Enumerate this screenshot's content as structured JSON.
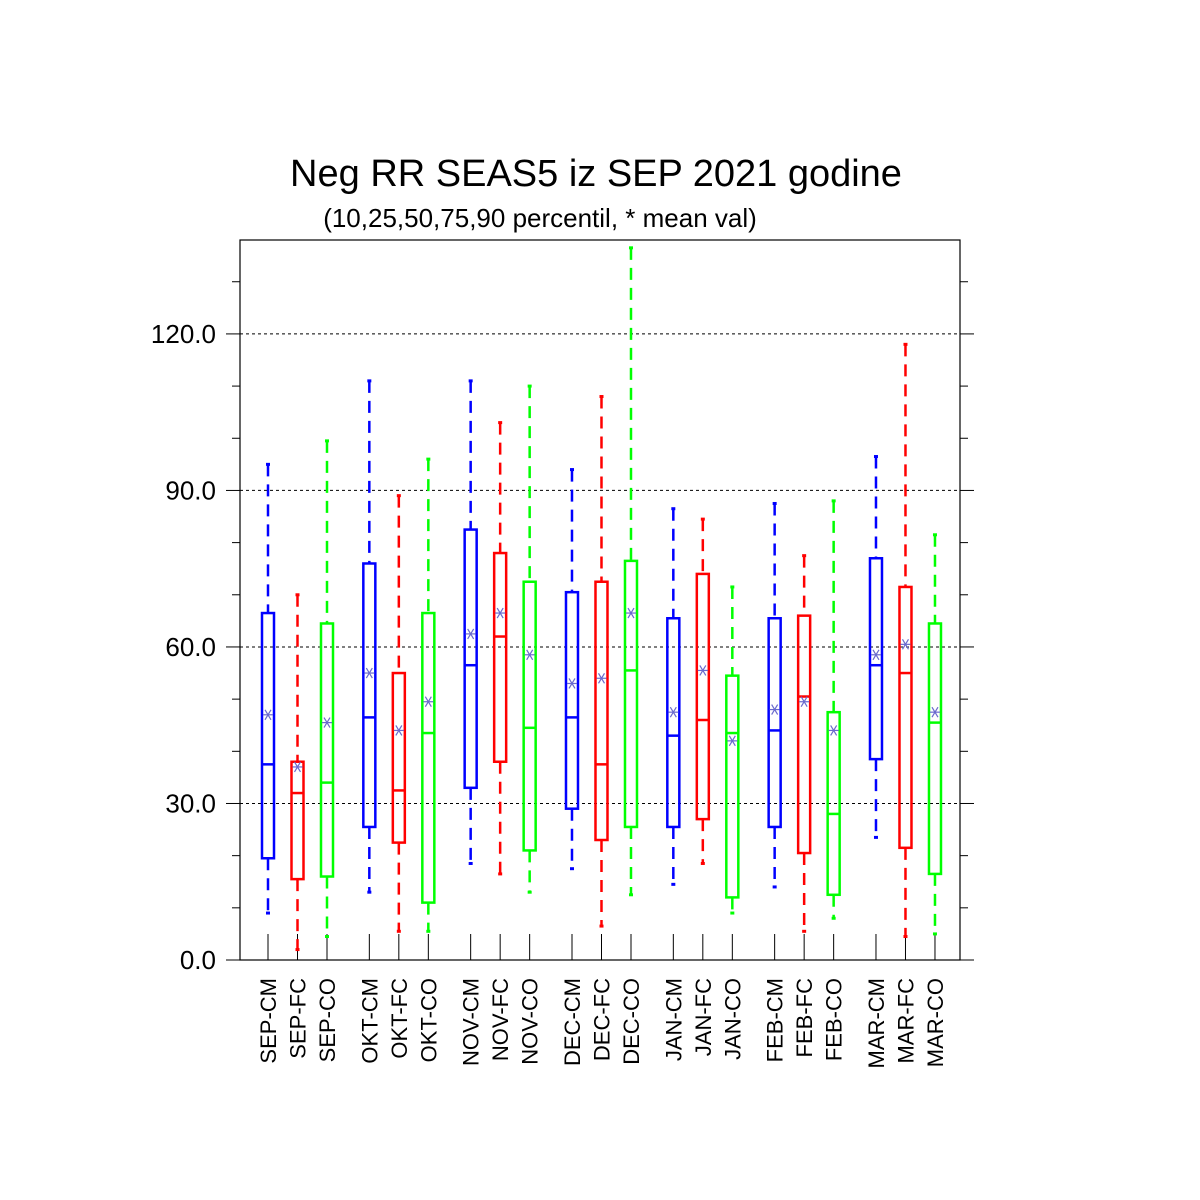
{
  "chart_data": {
    "type": "box",
    "title": "Neg RR SEAS5 iz SEP 2021 godine",
    "subtitle": "(10,25,50,75,90 percentil, * mean val)",
    "xlabel": "",
    "ylabel": "",
    "ylim": [
      0,
      138
    ],
    "yticks": [
      0,
      30,
      60,
      90,
      120
    ],
    "ytick_labels": [
      "0.0",
      "30.0",
      "60.0",
      "90.0",
      "120.0"
    ],
    "grid": "horizontal dashed at major ticks",
    "series_colors": {
      "CM": "#0000ff",
      "FC": "#ff0000",
      "CO": "#00ff00"
    },
    "mean_marker_color": "#6a6acd",
    "boxes": [
      {
        "label": "SEP-CM",
        "group": "SEP",
        "series": "CM",
        "p10": 9,
        "p25": 19.5,
        "p50": 37.5,
        "p75": 66.5,
        "p90": 95,
        "mean": 47
      },
      {
        "label": "SEP-FC",
        "group": "SEP",
        "series": "FC",
        "p10": 2,
        "p25": 15.5,
        "p50": 32,
        "p75": 38,
        "p90": 70,
        "mean": 37
      },
      {
        "label": "SEP-CO",
        "group": "SEP",
        "series": "CO",
        "p10": 4.5,
        "p25": 16,
        "p50": 34,
        "p75": 64.5,
        "p90": 99.5,
        "mean": 45.5
      },
      {
        "label": "OKT-CM",
        "group": "OKT",
        "series": "CM",
        "p10": 13,
        "p25": 25.5,
        "p50": 46.5,
        "p75": 76,
        "p90": 111,
        "mean": 55
      },
      {
        "label": "OKT-FC",
        "group": "OKT",
        "series": "FC",
        "p10": 5.5,
        "p25": 22.5,
        "p50": 32.5,
        "p75": 55,
        "p90": 89,
        "mean": 44
      },
      {
        "label": "OKT-CO",
        "group": "OKT",
        "series": "CO",
        "p10": 5.5,
        "p25": 11,
        "p50": 43.5,
        "p75": 66.5,
        "p90": 96,
        "mean": 49.5
      },
      {
        "label": "NOV-CM",
        "group": "NOV",
        "series": "CM",
        "p10": 18.5,
        "p25": 33,
        "p50": 56.5,
        "p75": 82.5,
        "p90": 111,
        "mean": 62.5
      },
      {
        "label": "NOV-FC",
        "group": "NOV",
        "series": "FC",
        "p10": 16.5,
        "p25": 38,
        "p50": 62,
        "p75": 78,
        "p90": 103,
        "mean": 66.5
      },
      {
        "label": "NOV-CO",
        "group": "NOV",
        "series": "CO",
        "p10": 13,
        "p25": 21,
        "p50": 44.5,
        "p75": 72.5,
        "p90": 110,
        "mean": 58.5
      },
      {
        "label": "DEC-CM",
        "group": "DEC",
        "series": "CM",
        "p10": 17.5,
        "p25": 29,
        "p50": 46.5,
        "p75": 70.5,
        "p90": 94,
        "mean": 53
      },
      {
        "label": "DEC-FC",
        "group": "DEC",
        "series": "FC",
        "p10": 6.5,
        "p25": 23,
        "p50": 37.5,
        "p75": 72.5,
        "p90": 108,
        "mean": 54
      },
      {
        "label": "DEC-CO",
        "group": "DEC",
        "series": "CO",
        "p10": 12.5,
        "p25": 25.5,
        "p50": 55.5,
        "p75": 76.5,
        "p90": 136.5,
        "mean": 66.5
      },
      {
        "label": "JAN-CM",
        "group": "JAN",
        "series": "CM",
        "p10": 14.5,
        "p25": 25.5,
        "p50": 43,
        "p75": 65.5,
        "p90": 86.5,
        "mean": 47.5
      },
      {
        "label": "JAN-FC",
        "group": "JAN",
        "series": "FC",
        "p10": 18.5,
        "p25": 27,
        "p50": 46,
        "p75": 74,
        "p90": 84.5,
        "mean": 55.5
      },
      {
        "label": "JAN-CO",
        "group": "JAN",
        "series": "CO",
        "p10": 9,
        "p25": 12,
        "p50": 43.5,
        "p75": 54.5,
        "p90": 71.5,
        "mean": 42
      },
      {
        "label": "FEB-CM",
        "group": "FEB",
        "series": "CM",
        "p10": 14,
        "p25": 25.5,
        "p50": 44,
        "p75": 65.5,
        "p90": 87.5,
        "mean": 48
      },
      {
        "label": "FEB-FC",
        "group": "FEB",
        "series": "FC",
        "p10": 5.5,
        "p25": 20.5,
        "p50": 50.5,
        "p75": 66,
        "p90": 77.5,
        "mean": 49.5
      },
      {
        "label": "FEB-CO",
        "group": "FEB",
        "series": "CO",
        "p10": 8,
        "p25": 12.5,
        "p50": 28,
        "p75": 47.5,
        "p90": 88,
        "mean": 44
      },
      {
        "label": "MAR-CM",
        "group": "MAR",
        "series": "CM",
        "p10": 23.5,
        "p25": 38.5,
        "p50": 56.5,
        "p75": 77,
        "p90": 96.5,
        "mean": 58.5
      },
      {
        "label": "MAR-FC",
        "group": "MAR",
        "series": "FC",
        "p10": 4.5,
        "p25": 21.5,
        "p50": 55,
        "p75": 71.5,
        "p90": 118,
        "mean": 60.5
      },
      {
        "label": "MAR-CO",
        "group": "MAR",
        "series": "CO",
        "p10": 5,
        "p25": 16.5,
        "p50": 45.5,
        "p75": 64.5,
        "p90": 81.5,
        "mean": 47.5
      }
    ]
  }
}
